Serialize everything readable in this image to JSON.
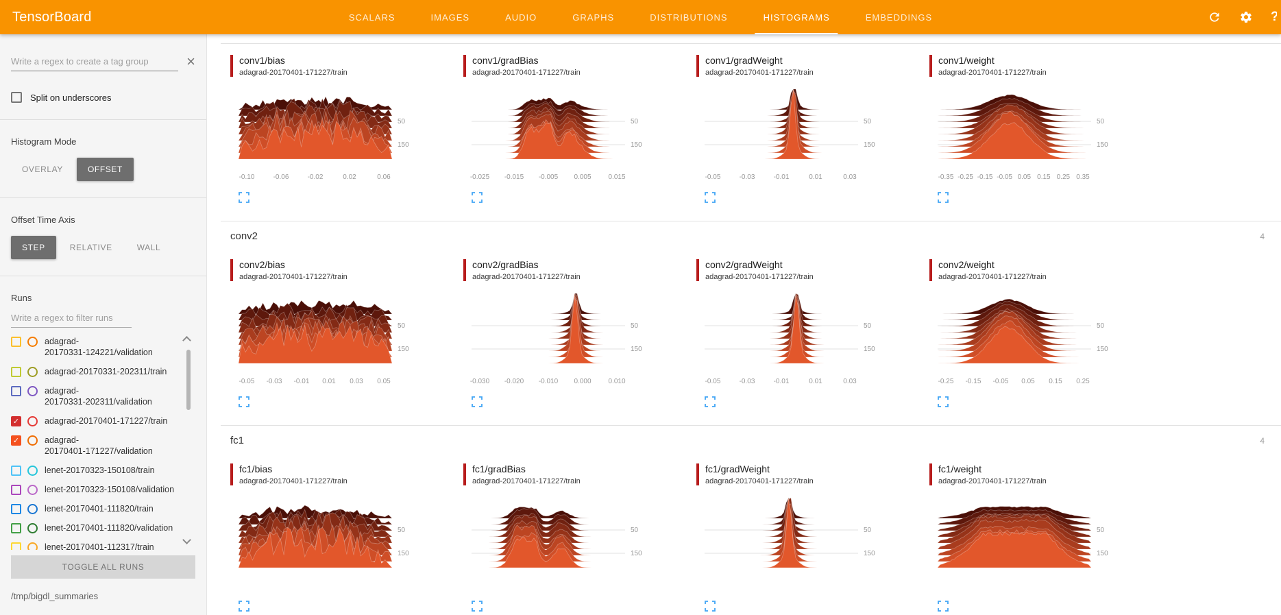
{
  "colors": {
    "header_bg": "#f99300",
    "card_bar": "#b71c1c",
    "ridge_back": "#4a0f07",
    "ridge_front": "#e2572b",
    "expand_icon": "#42a5f5",
    "selected_button_bg": "#6e6e6e",
    "toggle_all_bg": "#d6d6d6"
  },
  "header": {
    "title": "TensorBoard",
    "tabs": [
      {
        "label": "SCALARS",
        "active": false
      },
      {
        "label": "IMAGES",
        "active": false
      },
      {
        "label": "AUDIO",
        "active": false
      },
      {
        "label": "GRAPHS",
        "active": false
      },
      {
        "label": "DISTRIBUTIONS",
        "active": false
      },
      {
        "label": "HISTOGRAMS",
        "active": true
      },
      {
        "label": "EMBEDDINGS",
        "active": false
      }
    ]
  },
  "sidebar": {
    "tag_filter": {
      "placeholder": "Write a regex to create a tag group",
      "value": ""
    },
    "split_underscores_label": "Split on underscores",
    "histogram_mode": {
      "label": "Histogram Mode",
      "options": [
        "OVERLAY",
        "OFFSET"
      ],
      "selected": "OFFSET"
    },
    "offset_time_axis": {
      "label": "Offset Time Axis",
      "options": [
        "STEP",
        "RELATIVE",
        "WALL"
      ],
      "selected": "STEP"
    },
    "runs": {
      "label": "Runs",
      "filter": {
        "placeholder": "Write a regex to filter runs",
        "value": ""
      },
      "items": [
        {
          "label": "adagrad-20170331-124221/validation",
          "wrap": [
            "adagrad-",
            "20170331-124221/validation"
          ],
          "checked": false,
          "box_color": "#fbc02d",
          "circle_color": "#f57c00"
        },
        {
          "label": "adagrad-20170331-202311/train",
          "checked": false,
          "box_color": "#c0ca33",
          "circle_color": "#9e9d24"
        },
        {
          "label": "adagrad-20170331-202311/validation",
          "wrap": [
            "adagrad-",
            "20170331-202311/validation"
          ],
          "checked": false,
          "box_color": "#5c6bc0",
          "circle_color": "#7e57c2"
        },
        {
          "label": "adagrad-20170401-171227/train",
          "checked": true,
          "box_color": "#d32f2f",
          "circle_color": "#e53935"
        },
        {
          "label": "adagrad-20170401-171227/validation",
          "wrap": [
            "adagrad-",
            "20170401-171227/validation"
          ],
          "checked": true,
          "box_color": "#f4511e",
          "circle_color": "#ef6c00"
        },
        {
          "label": "lenet-20170323-150108/train",
          "checked": false,
          "box_color": "#4fc3f7",
          "circle_color": "#26c6da"
        },
        {
          "label": "lenet-20170323-150108/validation",
          "checked": false,
          "box_color": "#ab47bc",
          "circle_color": "#ba68c8"
        },
        {
          "label": "lenet-20170401-111820/train",
          "checked": false,
          "box_color": "#1e88e5",
          "circle_color": "#1976d2"
        },
        {
          "label": "lenet-20170401-111820/validation",
          "checked": false,
          "box_color": "#43a047",
          "circle_color": "#2e7d32"
        },
        {
          "label": "lenet-20170401-112317/train",
          "checked": false,
          "box_color": "#fdd835",
          "circle_color": "#f9a825"
        }
      ],
      "toggle_all_label": "TOGGLE ALL RUNS"
    },
    "log_dir": "/tmp/bigdl_summaries"
  },
  "main": {
    "groups": [
      {
        "name": "",
        "count": "",
        "header_visible": false,
        "chart_ids": [
          0,
          1,
          2,
          3
        ]
      },
      {
        "name": "conv2",
        "count": "4",
        "header_visible": true,
        "chart_ids": [
          4,
          5,
          6,
          7
        ]
      },
      {
        "name": "fc1",
        "count": "4",
        "header_visible": true,
        "chart_ids": [
          8,
          9,
          10,
          11
        ]
      }
    ]
  },
  "chart_data": [
    {
      "type": "area",
      "title": "conv1/bias",
      "run": "adagrad-20170401-171227/train",
      "shape": "jagged",
      "seed": 3,
      "center": 0.48,
      "width": 0.32,
      "x_ticks": [
        "-0.10",
        "-0.06",
        "-0.02",
        "0.02",
        "0.06"
      ],
      "y_ticks": [
        "50",
        "150"
      ]
    },
    {
      "type": "area",
      "title": "conv1/gradBias",
      "run": "adagrad-20170401-171227/train",
      "shape": "bumpy",
      "seed": 7,
      "center": 0.5,
      "width": 0.18,
      "x_ticks": [
        "-0.025",
        "-0.015",
        "-0.005",
        "0.005",
        "0.015"
      ],
      "y_ticks": [
        "50",
        "150"
      ]
    },
    {
      "type": "area",
      "title": "conv1/gradWeight",
      "run": "adagrad-20170401-171227/train",
      "shape": "spike",
      "seed": 11,
      "center": 0.58,
      "width": 0.02,
      "x_ticks": [
        "-0.05",
        "-0.03",
        "-0.01",
        "0.01",
        "0.03"
      ],
      "y_ticks": [
        "50",
        "150"
      ]
    },
    {
      "type": "area",
      "title": "conv1/weight",
      "run": "adagrad-20170401-171227/train",
      "shape": "bell",
      "seed": 13,
      "center": 0.47,
      "width": 0.13,
      "x_ticks": [
        "-0.35",
        "-0.25",
        "-0.15",
        "-0.05",
        "0.05",
        "0.15",
        "0.25",
        "0.35"
      ],
      "y_ticks": [
        "50",
        "150"
      ]
    },
    {
      "type": "area",
      "title": "conv2/bias",
      "run": "adagrad-20170401-171227/train",
      "shape": "jagged",
      "seed": 17,
      "center": 0.5,
      "width": 0.36,
      "x_ticks": [
        "-0.05",
        "-0.03",
        "-0.01",
        "0.01",
        "0.03",
        "0.05"
      ],
      "y_ticks": [
        "50",
        "150"
      ]
    },
    {
      "type": "area",
      "title": "conv2/gradBias",
      "run": "adagrad-20170401-171227/train",
      "shape": "spike",
      "seed": 19,
      "center": 0.68,
      "width": 0.015,
      "x_ticks": [
        "-0.030",
        "-0.020",
        "-0.010",
        "0.000",
        "0.010"
      ],
      "y_ticks": [
        "50",
        "150"
      ]
    },
    {
      "type": "area",
      "title": "conv2/gradWeight",
      "run": "adagrad-20170401-171227/train",
      "shape": "spike",
      "seed": 23,
      "center": 0.6,
      "width": 0.018,
      "x_ticks": [
        "-0.05",
        "-0.03",
        "-0.01",
        "0.01",
        "0.03"
      ],
      "y_ticks": [
        "50",
        "150"
      ]
    },
    {
      "type": "area",
      "title": "conv2/weight",
      "run": "adagrad-20170401-171227/train",
      "shape": "bell",
      "seed": 29,
      "center": 0.46,
      "width": 0.12,
      "x_ticks": [
        "-0.25",
        "-0.15",
        "-0.05",
        "0.05",
        "0.15",
        "0.25"
      ],
      "y_ticks": [
        "50",
        "150"
      ]
    },
    {
      "type": "area",
      "title": "fc1/bias",
      "run": "adagrad-20170401-171227/train",
      "shape": "jagged",
      "seed": 31,
      "center": 0.47,
      "width": 0.3,
      "x_ticks": [],
      "y_ticks": [
        "50",
        "150"
      ]
    },
    {
      "type": "area",
      "title": "fc1/gradBias",
      "run": "adagrad-20170401-171227/train",
      "shape": "bumpy",
      "seed": 37,
      "center": 0.45,
      "width": 0.16,
      "x_ticks": [],
      "y_ticks": [
        "50",
        "150"
      ]
    },
    {
      "type": "area",
      "title": "fc1/gradWeight",
      "run": "adagrad-20170401-171227/train",
      "shape": "spike",
      "seed": 41,
      "center": 0.55,
      "width": 0.02,
      "x_ticks": [],
      "y_ticks": [
        "50",
        "150"
      ]
    },
    {
      "type": "area",
      "title": "fc1/weight",
      "run": "adagrad-20170401-171227/train",
      "shape": "flatbell",
      "seed": 43,
      "center": 0.5,
      "width": 0.2,
      "x_ticks": [],
      "y_ticks": [
        "50",
        "150"
      ]
    }
  ]
}
